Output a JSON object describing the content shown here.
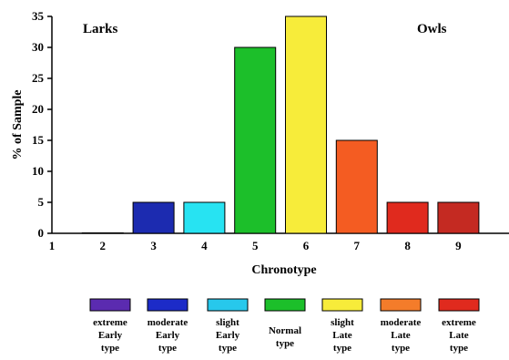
{
  "chart_data": {
    "type": "bar",
    "categories": [
      "1",
      "2",
      "3",
      "4",
      "5",
      "6",
      "7",
      "8",
      "9"
    ],
    "values": [
      0,
      0,
      5,
      5,
      30,
      35,
      15,
      5,
      5
    ],
    "bar_colors": [
      "#ffffff",
      "#ffffff",
      "#1c2bb0",
      "#27e3f2",
      "#1cbf2a",
      "#f7ec3a",
      "#f45c22",
      "#e02a1e",
      "#c42a22"
    ],
    "title": "",
    "xlabel": "Chronotype",
    "ylabel": "% of Sample",
    "ylim": [
      0,
      35
    ],
    "yticks": [
      0,
      5,
      10,
      15,
      20,
      25,
      30,
      35
    ],
    "grid": false,
    "annotations": [
      {
        "text": "Larks",
        "position": "top-left"
      },
      {
        "text": "Owls",
        "position": "top-right"
      }
    ],
    "legend": {
      "placement": "bottom",
      "entries": [
        {
          "label": [
            "extreme",
            "Early",
            "type"
          ],
          "color": "#5b2bb0"
        },
        {
          "label": [
            "moderate",
            "Early",
            "type"
          ],
          "color": "#1c2bc8"
        },
        {
          "label": [
            "slight",
            "Early",
            "type"
          ],
          "color": "#27c8ec"
        },
        {
          "label": [
            "Normal",
            "type"
          ],
          "color": "#1cbf2a"
        },
        {
          "label": [
            "slight",
            "Late",
            "type"
          ],
          "color": "#f7ec3a"
        },
        {
          "label": [
            "moderate",
            "Late",
            "type"
          ],
          "color": "#f47c2a"
        },
        {
          "label": [
            "extreme",
            "Late",
            "type"
          ],
          "color": "#e02a1e"
        }
      ]
    }
  }
}
